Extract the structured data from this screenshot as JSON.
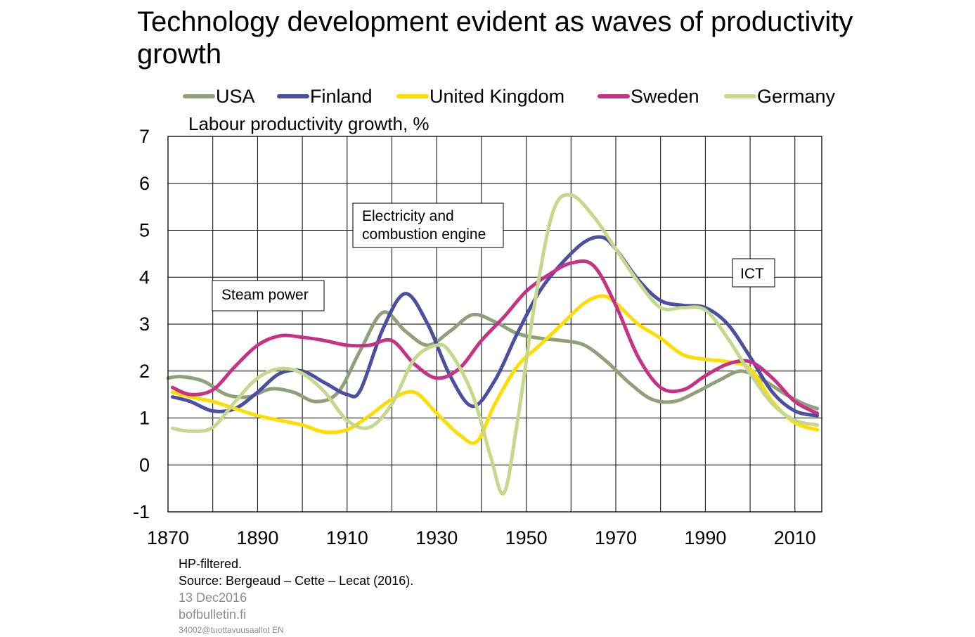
{
  "header": {
    "title": "Technology development evident as waves of productivity growth"
  },
  "chart_data": {
    "type": "line",
    "title": "Technology development evident as waves of productivity growth",
    "ylabel": "Labour productivity growth, %",
    "xlabel": "",
    "xlim": [
      1870,
      2016
    ],
    "ylim": [
      -1,
      7
    ],
    "xticks": [
      1870,
      1890,
      1910,
      1930,
      1950,
      1970,
      1990,
      2010
    ],
    "yticks": [
      -1,
      0,
      1,
      2,
      3,
      4,
      5,
      6,
      7
    ],
    "grid": true,
    "legend_position": "top",
    "colors": {
      "USA": "#8fa07a",
      "Finland": "#4a4fa0",
      "United Kingdom": "#ffdd00",
      "Sweden": "#c63386",
      "Germany": "#c5d88c"
    },
    "series": [
      {
        "name": "USA",
        "x": [
          1870,
          1873,
          1878,
          1883,
          1888,
          1893,
          1898,
          1903,
          1908,
          1913,
          1918,
          1923,
          1928,
          1933,
          1938,
          1943,
          1948,
          1953,
          1958,
          1963,
          1968,
          1973,
          1978,
          1983,
          1988,
          1993,
          1998,
          2003,
          2008,
          2012,
          2015
        ],
        "values": [
          1.85,
          1.88,
          1.78,
          1.5,
          1.45,
          1.62,
          1.55,
          1.35,
          1.55,
          2.45,
          3.25,
          2.85,
          2.55,
          2.85,
          3.2,
          3.05,
          2.8,
          2.7,
          2.65,
          2.55,
          2.2,
          1.75,
          1.4,
          1.35,
          1.55,
          1.8,
          2.0,
          1.8,
          1.5,
          1.3,
          1.2
        ]
      },
      {
        "name": "Finland",
        "x": [
          1871,
          1875,
          1880,
          1885,
          1890,
          1895,
          1900,
          1905,
          1910,
          1913,
          1918,
          1923,
          1928,
          1933,
          1938,
          1943,
          1948,
          1953,
          1958,
          1963,
          1967,
          1970,
          1975,
          1980,
          1985,
          1990,
          1995,
          2000,
          2005,
          2010,
          2015
        ],
        "values": [
          1.45,
          1.35,
          1.15,
          1.2,
          1.55,
          1.95,
          2.0,
          1.75,
          1.5,
          1.6,
          2.9,
          3.65,
          3.0,
          1.9,
          1.25,
          1.8,
          2.8,
          3.7,
          4.3,
          4.75,
          4.85,
          4.6,
          3.95,
          3.5,
          3.4,
          3.35,
          3.0,
          2.3,
          1.55,
          1.15,
          1.05
        ]
      },
      {
        "name": "United Kingdom",
        "x": [
          1871,
          1875,
          1880,
          1885,
          1890,
          1895,
          1900,
          1905,
          1910,
          1915,
          1920,
          1925,
          1930,
          1935,
          1939,
          1943,
          1948,
          1953,
          1958,
          1963,
          1967,
          1970,
          1975,
          1980,
          1985,
          1990,
          1995,
          2000,
          2005,
          2010,
          2015
        ],
        "values": [
          1.55,
          1.45,
          1.35,
          1.2,
          1.05,
          0.95,
          0.85,
          0.7,
          0.75,
          1.05,
          1.4,
          1.55,
          1.1,
          0.65,
          0.5,
          1.3,
          2.1,
          2.55,
          3.0,
          3.45,
          3.6,
          3.45,
          3.0,
          2.7,
          2.35,
          2.25,
          2.2,
          2.05,
          1.35,
          0.9,
          0.75
        ]
      },
      {
        "name": "Sweden",
        "x": [
          1871,
          1875,
          1880,
          1885,
          1890,
          1895,
          1900,
          1905,
          1910,
          1915,
          1920,
          1925,
          1930,
          1935,
          1940,
          1945,
          1950,
          1955,
          1960,
          1965,
          1970,
          1975,
          1980,
          1985,
          1990,
          1995,
          2000,
          2005,
          2010,
          2015
        ],
        "values": [
          1.65,
          1.5,
          1.6,
          2.1,
          2.55,
          2.75,
          2.72,
          2.65,
          2.55,
          2.55,
          2.65,
          2.15,
          1.85,
          2.05,
          2.65,
          3.15,
          3.7,
          4.05,
          4.3,
          4.25,
          3.4,
          2.3,
          1.65,
          1.6,
          1.9,
          2.15,
          2.2,
          1.85,
          1.35,
          1.1
        ]
      },
      {
        "name": "Germany",
        "x": [
          1871,
          1875,
          1880,
          1885,
          1890,
          1895,
          1900,
          1905,
          1910,
          1915,
          1920,
          1925,
          1930,
          1933,
          1938,
          1942,
          1945,
          1948,
          1952,
          1956,
          1960,
          1965,
          1970,
          1975,
          1980,
          1985,
          1990,
          1995,
          2000,
          2005,
          2010,
          2015
        ],
        "values": [
          0.78,
          0.72,
          0.8,
          1.35,
          1.85,
          2.05,
          1.95,
          1.55,
          0.95,
          0.8,
          1.3,
          2.25,
          2.55,
          2.4,
          1.5,
          0.2,
          -0.6,
          0.9,
          3.5,
          5.4,
          5.75,
          5.3,
          4.6,
          3.9,
          3.35,
          3.35,
          3.3,
          2.7,
          1.95,
          1.3,
          0.95,
          0.85
        ]
      }
    ],
    "annotations": [
      {
        "text": "Steam power"
      },
      {
        "text": "Electricity and combustion engine"
      },
      {
        "text": "ICT"
      }
    ]
  },
  "footer": {
    "note": "HP-filtered.",
    "source": "Source: Bergeaud – Cette – Lecat (2016).",
    "date": "13 Dec2016",
    "site": "bofbulletin.fi",
    "code": "34002@tuottavuusaallot  EN"
  }
}
